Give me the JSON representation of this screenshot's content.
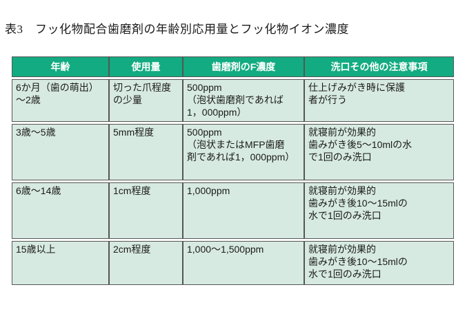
{
  "title": "表3　フッ化物配合歯磨剤の年齢別応用量とフッ化物イオン濃度",
  "table": {
    "headers": [
      "年齢",
      "使用量",
      "歯磨剤のF濃度",
      "洗口その他の注意事項"
    ],
    "rows": [
      {
        "age": "6か月（歯の萌出）\n～2歳",
        "amount": "切った爪程度\nの少量",
        "concentration": "500ppm\n（泡状歯磨剤であれば\n1，000ppm）",
        "notes": "仕上げみがき時に保護\n者が行う"
      },
      {
        "age": "3歳～5歳",
        "amount": "5mm程度",
        "concentration": "500ppm\n（泡状またはMFP歯磨\n剤であれば1，000ppm）",
        "notes": "就寝前が効果的\n歯みがき後5～10mlの水\nで1回のみ洗口"
      },
      {
        "age": "6歳～14歳",
        "amount": "1cm程度",
        "concentration": "1,000ppm",
        "notes": "就寝前が効果的\n歯みがき後10～15mlの\n水で1回のみ洗口"
      },
      {
        "age": "15歳以上",
        "amount": "2cm程度",
        "concentration": "1,000～1,500ppm",
        "notes": "就寝前が効果的\n歯みがき後10～15mlの\n水で1回のみ洗口"
      }
    ]
  },
  "colors": {
    "header-bg": "#13ab81",
    "header-text": "#ffffff",
    "cell-bg": "#d7eae1",
    "border": "#555555",
    "text": "#1a1a1a",
    "page-bg": "#ffffff"
  }
}
